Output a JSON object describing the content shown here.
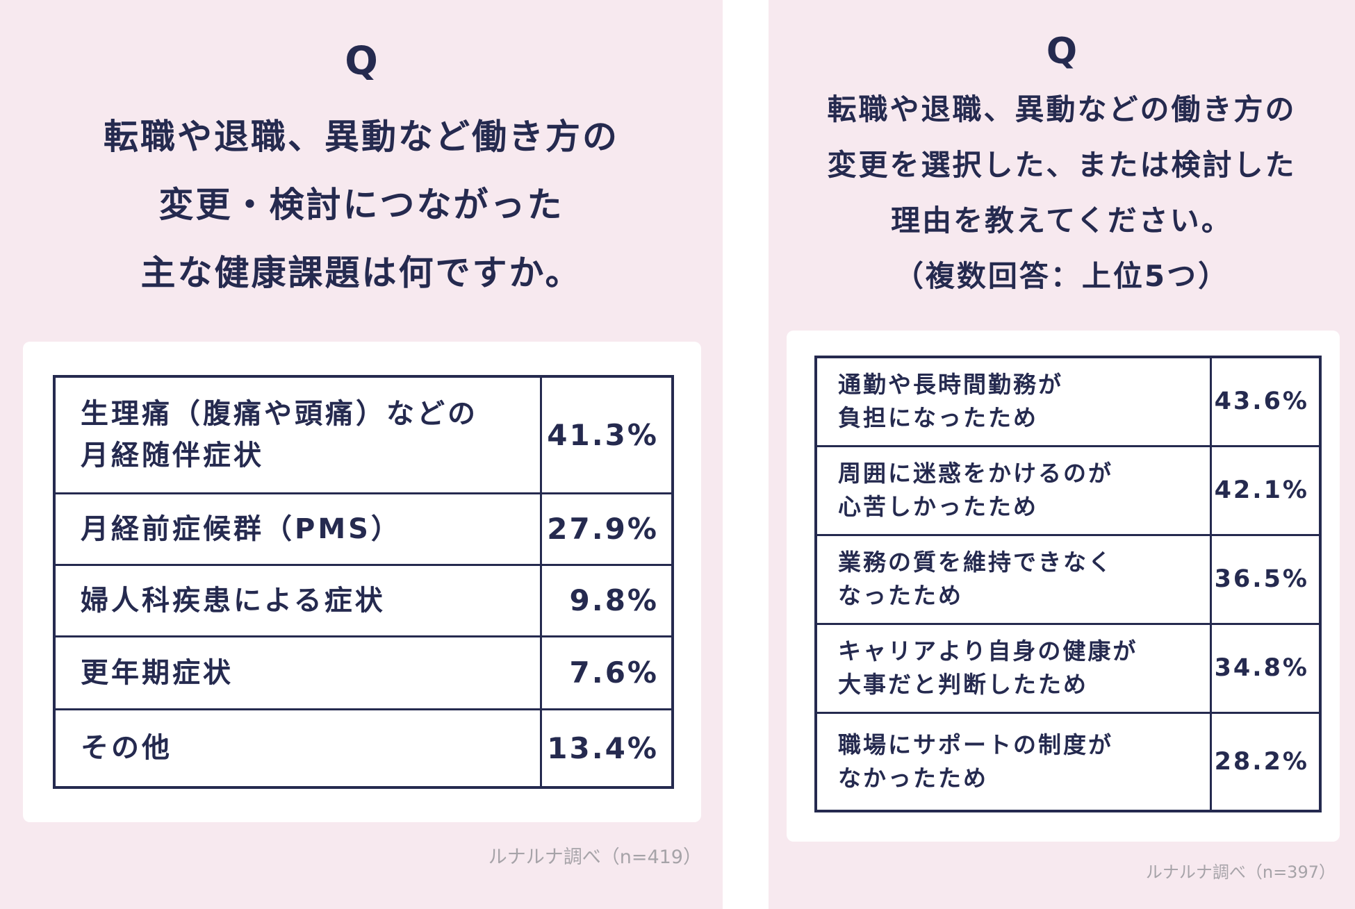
{
  "chart_data": [
    {
      "type": "table",
      "title_mark": "Q",
      "title_lines": [
        "転職や退職、異動など働き方の",
        "変更・検討につながった",
        "主な健康課題は何ですか。"
      ],
      "rows": [
        {
          "label_lines": [
            "生理痛（腹痛や頭痛）などの",
            "月経随伴症状"
          ],
          "value": 41.3,
          "value_text": "41.3%"
        },
        {
          "label_lines": [
            "月経前症候群（PMS）"
          ],
          "value": 27.9,
          "value_text": "27.9%"
        },
        {
          "label_lines": [
            "婦人科疾患による症状"
          ],
          "value": 9.8,
          "value_text": "9.8%"
        },
        {
          "label_lines": [
            "更年期症状"
          ],
          "value": 7.6,
          "value_text": "7.6%"
        },
        {
          "label_lines": [
            "その他"
          ],
          "value": 13.4,
          "value_text": "13.4%"
        }
      ],
      "source": "ルナルナ調べ（n=419）"
    },
    {
      "type": "table",
      "title_mark": "Q",
      "title_lines": [
        "転職や退職、異動などの働き方の",
        "変更を選択した、または検討した",
        "理由を教えてください。",
        "（複数回答：上位5つ）"
      ],
      "rows": [
        {
          "label_lines": [
            "通勤や長時間勤務が",
            "負担になったため"
          ],
          "value": 43.6,
          "value_text": "43.6%"
        },
        {
          "label_lines": [
            "周囲に迷惑をかけるのが",
            "心苦しかったため"
          ],
          "value": 42.1,
          "value_text": "42.1%"
        },
        {
          "label_lines": [
            "業務の質を維持できなく",
            "なったため"
          ],
          "value": 36.5,
          "value_text": "36.5%"
        },
        {
          "label_lines": [
            "キャリアより自身の健康が",
            "大事だと判断したため"
          ],
          "value": 34.8,
          "value_text": "34.8%"
        },
        {
          "label_lines": [
            "職場にサポートの制度が",
            "なかったため"
          ],
          "value": 28.2,
          "value_text": "28.2%"
        }
      ],
      "source": "ルナルナ調べ（n=397）"
    }
  ],
  "colors": {
    "panel_background": "#f7e9ef",
    "card_background": "#ffffff",
    "ink": "#252a4f",
    "source_text": "#a6a3a8"
  }
}
